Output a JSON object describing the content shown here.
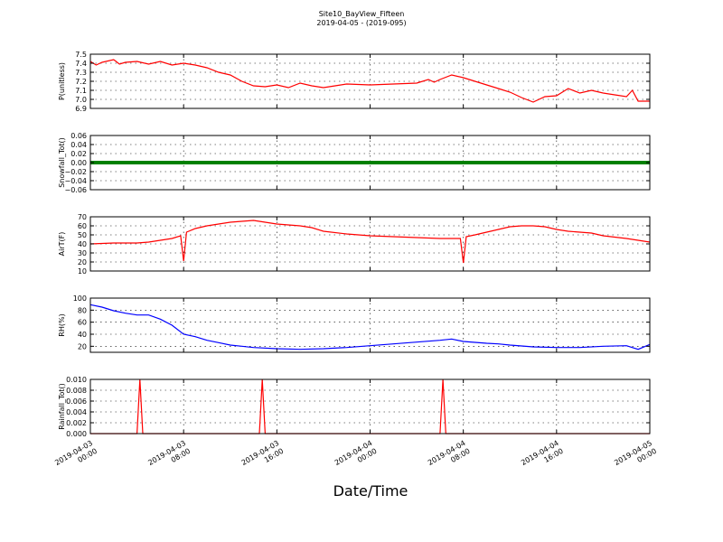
{
  "figure": {
    "title": "Site10_BayView_Fifteen",
    "subtitle": "2019-04-05 - (2019-095)",
    "xlabel": "Date/Time"
  },
  "x_ticks": [
    {
      "value": "2019-04-03 00:00",
      "line1": "2019-04-03",
      "line2": "00:00"
    },
    {
      "value": "2019-04-03 08:00",
      "line1": "2019-04-03",
      "line2": "08:00"
    },
    {
      "value": "2019-04-03 16:00",
      "line1": "2019-04-03",
      "line2": "16:00"
    },
    {
      "value": "2019-04-04 00:00",
      "line1": "2019-04-04",
      "line2": "00:00"
    },
    {
      "value": "2019-04-04 08:00",
      "line1": "2019-04-04",
      "line2": "08:00"
    },
    {
      "value": "2019-04-04 16:00",
      "line1": "2019-04-04",
      "line2": "16:00"
    },
    {
      "value": "2019-04-05 00:00",
      "line1": "2019-04-05",
      "line2": "00:00"
    }
  ],
  "chart_data": [
    {
      "type": "line",
      "ylabel": "P(unitless)",
      "ylim": [
        6.9,
        7.5
      ],
      "yticks": [
        "6.9",
        "7.0",
        "7.1",
        "7.2",
        "7.3",
        "7.4",
        "7.5"
      ],
      "grid": true,
      "color": "#ff0000",
      "series": [
        {
          "x": [
            "2019-04-03 00:00",
            "2019-04-03 00:30",
            "2019-04-03 01:00",
            "2019-04-03 02:00",
            "2019-04-03 02:30",
            "2019-04-03 03:00",
            "2019-04-03 04:00",
            "2019-04-03 05:00",
            "2019-04-03 06:00",
            "2019-04-03 07:00",
            "2019-04-03 07:30",
            "2019-04-03 08:00",
            "2019-04-03 09:00",
            "2019-04-03 10:00",
            "2019-04-03 11:00",
            "2019-04-03 12:00",
            "2019-04-03 13:00",
            "2019-04-03 14:00",
            "2019-04-03 15:00",
            "2019-04-03 16:00",
            "2019-04-03 17:00",
            "2019-04-03 18:00",
            "2019-04-03 19:00",
            "2019-04-03 20:00",
            "2019-04-03 21:00",
            "2019-04-03 22:00",
            "2019-04-04 00:00",
            "2019-04-04 02:00",
            "2019-04-04 04:00",
            "2019-04-04 05:00",
            "2019-04-04 05:30",
            "2019-04-04 06:00",
            "2019-04-04 07:00",
            "2019-04-04 08:00",
            "2019-04-04 09:00",
            "2019-04-04 10:00",
            "2019-04-04 11:00",
            "2019-04-04 12:00",
            "2019-04-04 13:00",
            "2019-04-04 14:00",
            "2019-04-04 15:00",
            "2019-04-04 16:00",
            "2019-04-04 17:00",
            "2019-04-04 18:00",
            "2019-04-04 19:00",
            "2019-04-04 20:00",
            "2019-04-04 21:00",
            "2019-04-04 22:00",
            "2019-04-04 22:30",
            "2019-04-04 23:00",
            "2019-04-05 00:00"
          ],
          "values": [
            7.42,
            7.38,
            7.41,
            7.44,
            7.39,
            7.41,
            7.42,
            7.39,
            7.42,
            7.38,
            7.39,
            7.4,
            7.38,
            7.35,
            7.3,
            7.27,
            7.2,
            7.15,
            7.14,
            7.16,
            7.13,
            7.18,
            7.15,
            7.13,
            7.15,
            7.17,
            7.16,
            7.17,
            7.18,
            7.22,
            7.19,
            7.22,
            7.27,
            7.24,
            7.2,
            7.16,
            7.12,
            7.08,
            7.02,
            6.97,
            7.03,
            7.04,
            7.12,
            7.07,
            7.1,
            7.07,
            7.05,
            7.03,
            7.1,
            6.98,
            6.98
          ]
        }
      ]
    },
    {
      "type": "scatter",
      "ylabel": "Snowfall_Tot()",
      "ylim": [
        -0.06,
        0.06
      ],
      "yticks": [
        "−0.06",
        "−0.04",
        "−0.02",
        "0.00",
        "0.02",
        "0.04",
        "0.06"
      ],
      "grid": true,
      "color": "#008000",
      "series": [
        {
          "description": "constant",
          "x_range": [
            "2019-04-03 00:00",
            "2019-04-05 00:00"
          ],
          "value": 0.0
        }
      ]
    },
    {
      "type": "line",
      "ylabel": "AirT(F)",
      "ylim": [
        10,
        70
      ],
      "yticks": [
        "10",
        "20",
        "30",
        "40",
        "50",
        "60",
        "70"
      ],
      "grid": true,
      "color": "#ff0000",
      "series": [
        {
          "x": [
            "2019-04-03 00:00",
            "2019-04-03 02:00",
            "2019-04-03 04:00",
            "2019-04-03 05:00",
            "2019-04-03 06:00",
            "2019-04-03 07:00",
            "2019-04-03 07:45",
            "2019-04-03 08:00",
            "2019-04-03 08:15",
            "2019-04-03 09:00",
            "2019-04-03 10:00",
            "2019-04-03 11:00",
            "2019-04-03 12:00",
            "2019-04-03 13:00",
            "2019-04-03 14:00",
            "2019-04-03 15:00",
            "2019-04-03 16:00",
            "2019-04-03 17:00",
            "2019-04-03 18:00",
            "2019-04-03 19:00",
            "2019-04-03 20:00",
            "2019-04-03 22:00",
            "2019-04-04 00:00",
            "2019-04-04 02:00",
            "2019-04-04 04:00",
            "2019-04-04 06:00",
            "2019-04-04 07:45",
            "2019-04-04 08:00",
            "2019-04-04 08:15",
            "2019-04-04 09:00",
            "2019-04-04 10:00",
            "2019-04-04 11:00",
            "2019-04-04 12:00",
            "2019-04-04 13:00",
            "2019-04-04 14:00",
            "2019-04-04 15:00",
            "2019-04-04 16:00",
            "2019-04-04 17:00",
            "2019-04-04 18:00",
            "2019-04-04 19:00",
            "2019-04-04 20:00",
            "2019-04-04 22:00",
            "2019-04-05 00:00"
          ],
          "values": [
            40,
            41,
            41,
            42,
            44,
            46,
            49,
            21,
            53,
            57,
            60,
            62,
            64,
            65,
            66,
            64,
            62,
            61,
            60,
            58,
            54,
            51,
            49,
            48,
            47,
            46,
            46,
            19,
            48,
            50,
            53,
            56,
            59,
            60,
            60,
            59,
            56,
            54,
            53,
            52,
            49,
            46,
            42
          ]
        }
      ]
    },
    {
      "type": "line",
      "ylabel": "RH(%)",
      "ylim": [
        10,
        100
      ],
      "yticks": [
        "20",
        "40",
        "60",
        "80",
        "100"
      ],
      "grid": true,
      "color": "#0000ff",
      "series": [
        {
          "x": [
            "2019-04-03 00:00",
            "2019-04-03 01:00",
            "2019-04-03 02:00",
            "2019-04-03 03:00",
            "2019-04-03 04:00",
            "2019-04-03 05:00",
            "2019-04-03 06:00",
            "2019-04-03 07:00",
            "2019-04-03 08:00",
            "2019-04-03 09:00",
            "2019-04-03 10:00",
            "2019-04-03 11:00",
            "2019-04-03 12:00",
            "2019-04-03 13:00",
            "2019-04-03 14:00",
            "2019-04-03 16:00",
            "2019-04-03 18:00",
            "2019-04-03 20:00",
            "2019-04-03 22:00",
            "2019-04-04 00:00",
            "2019-04-04 02:00",
            "2019-04-04 04:00",
            "2019-04-04 06:00",
            "2019-04-04 07:00",
            "2019-04-04 08:00",
            "2019-04-04 10:00",
            "2019-04-04 11:00",
            "2019-04-04 12:00",
            "2019-04-04 14:00",
            "2019-04-04 16:00",
            "2019-04-04 18:00",
            "2019-04-04 20:00",
            "2019-04-04 22:00",
            "2019-04-04 23:00",
            "2019-04-05 00:00"
          ],
          "values": [
            89,
            85,
            79,
            75,
            72,
            72,
            65,
            55,
            40,
            36,
            30,
            26,
            22,
            20,
            18,
            16,
            15,
            16,
            18,
            21,
            24,
            27,
            30,
            32,
            28,
            25,
            24,
            22,
            19,
            18,
            18,
            20,
            21,
            15,
            23
          ]
        }
      ]
    },
    {
      "type": "line",
      "ylabel": "Rainfall_Tot()",
      "ylim": [
        0.0,
        0.01
      ],
      "yticks": [
        "0.000",
        "0.002",
        "0.004",
        "0.006",
        "0.008",
        "0.010"
      ],
      "grid": true,
      "color": "#ff0000",
      "series": [
        {
          "x": [
            "2019-04-03 00:00",
            "2019-04-03 04:00",
            "2019-04-03 04:15",
            "2019-04-03 04:30",
            "2019-04-03 14:30",
            "2019-04-03 14:45",
            "2019-04-03 15:00",
            "2019-04-04 06:00",
            "2019-04-04 06:15",
            "2019-04-04 06:30",
            "2019-04-05 00:00"
          ],
          "values": [
            0,
            0,
            0.01,
            0,
            0,
            0.01,
            0,
            0,
            0.01,
            0,
            0
          ]
        }
      ]
    }
  ]
}
